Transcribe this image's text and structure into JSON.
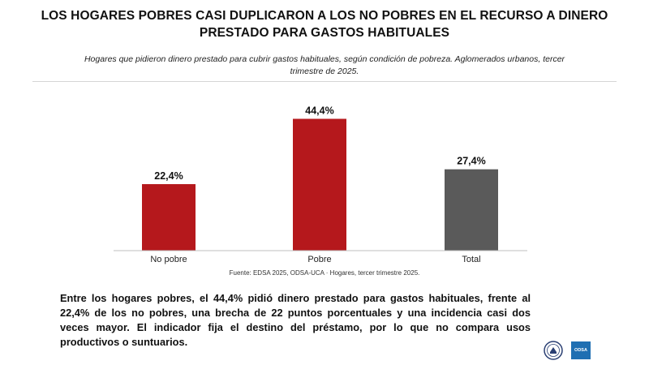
{
  "header": {
    "title_lines": [
      "LOS HOGARES POBRES CASI DUPLICARON A LOS NO POBRES EN EL RECURSO A DINERO",
      "PRESTADO PARA GASTOS HABITUALES"
    ],
    "subtitle_lines": [
      "Hogares que pidieron dinero prestado para cubrir gastos habituales, según condición de pobreza. Aglomerados urbanos, tercer",
      "trimestre de 2025."
    ]
  },
  "chart_data": {
    "type": "bar",
    "categories": [
      "No pobre",
      "Pobre",
      "Total"
    ],
    "values": [
      22.4,
      44.4,
      27.4
    ],
    "value_labels": [
      "22,4%",
      "44,4%",
      "27,4%"
    ],
    "bar_colors": [
      "#b5181c",
      "#b5181c",
      "#5a5a5a"
    ],
    "xlabel": "",
    "ylabel": "",
    "ylim": [
      0,
      50
    ],
    "grid": false,
    "legend": "none"
  },
  "source": "Fuente: EDSA 2025, ODSA-UCA · Hogares, tercer trimestre 2025.",
  "body_text": "Entre los hogares pobres, el 44,4% pidió dinero prestado para gastos habituales, frente al 22,4% de los no pobres, una brecha de 22 puntos porcentuales y una incidencia casi dos veces mayor. El indicador fija el destino del préstamo, por lo que no compara usos productivos o suntuarios.",
  "logos": {
    "seal_icon": "university-seal-icon",
    "odsa_label": "ODSA"
  }
}
